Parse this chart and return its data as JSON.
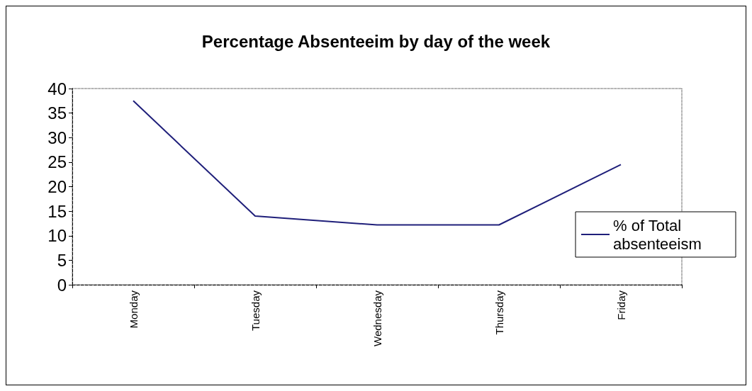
{
  "chart_data": {
    "type": "line",
    "title": "Percentage Absenteeim by day of the week",
    "categories": [
      "Monday",
      "Tuesday",
      "Wednesday",
      "Thursday",
      "Friday"
    ],
    "series": [
      {
        "name": "% of Total absenteeism",
        "color": "#1f1f7a",
        "values": [
          37.5,
          14,
          12.2,
          12.2,
          24.5
        ]
      }
    ],
    "ylim": [
      0,
      40
    ],
    "yticks": [
      0,
      5,
      10,
      15,
      20,
      25,
      30,
      35,
      40
    ],
    "grid": false,
    "legend": "right",
    "marker": "none"
  }
}
